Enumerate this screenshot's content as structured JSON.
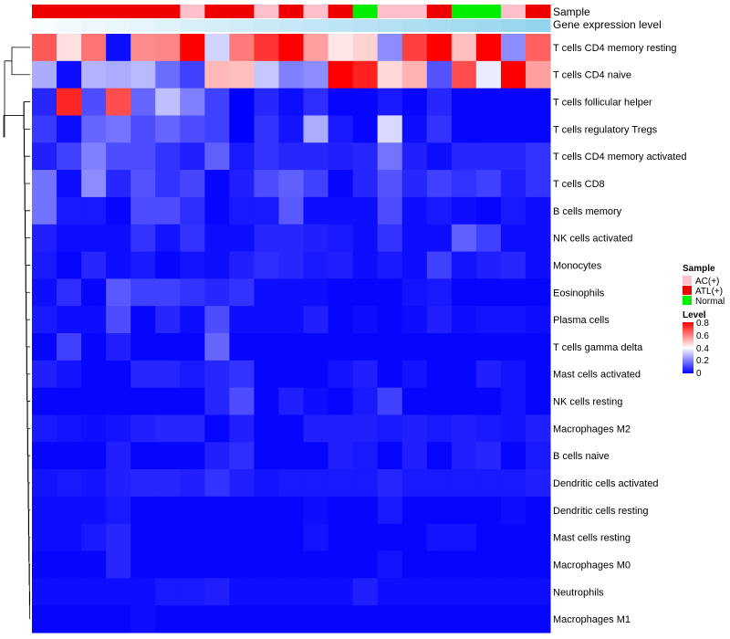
{
  "chart_data": {
    "type": "heatmap",
    "title": "",
    "annotation_tracks": [
      {
        "name": "Sample",
        "label": "Sample"
      },
      {
        "name": "Level",
        "label": "Gene expression level"
      }
    ],
    "rows": [
      "T cells CD4 memory resting",
      "T cells CD4 naive",
      "T cells follicular helper",
      "T cells regulatory  Tregs",
      "T cells CD4 memory activated",
      "T cells CD8",
      "B cells memory",
      "NK cells activated",
      "Monocytes",
      "Eosinophils",
      "Plasma cells",
      "T cells gamma delta",
      "Mast cells activated",
      "NK cells resting",
      "Macrophages M2",
      "B cells naive",
      "Dendritic cells activated",
      "Dendritic cells resting",
      "Mast cells resting",
      "Macrophages M0",
      "Neutrophils",
      "Macrophages M1"
    ],
    "sample_groups": [
      "ATL(+)",
      "ATL(+)",
      "ATL(+)",
      "ATL(+)",
      "ATL(+)",
      "ATL(+)",
      "AC(+)",
      "ATL(+)",
      "ATL(+)",
      "AC(+)",
      "ATL(+)",
      "AC(+)",
      "ATL(+)",
      "Normal",
      "AC(+)",
      "AC(+)",
      "ATL(+)",
      "Normal",
      "Normal",
      "AC(+)",
      "ATL(+)"
    ],
    "expression_level": [
      0.05,
      0.1,
      0.14,
      0.18,
      0.22,
      0.27,
      0.31,
      0.35,
      0.39,
      0.43,
      0.47,
      0.51,
      0.55,
      0.59,
      0.63,
      0.67,
      0.71,
      0.76,
      0.8,
      0.84,
      0.88
    ],
    "values": [
      [
        0.66,
        0.45,
        0.62,
        0.02,
        0.58,
        0.59,
        0.8,
        0.33,
        0.61,
        0.72,
        0.8,
        0.55,
        0.44,
        0.47,
        0.22,
        0.7,
        0.8,
        0.5,
        0.82,
        0.22,
        0.65
      ],
      [
        0.27,
        0.02,
        0.28,
        0.27,
        0.29,
        0.17,
        0.1,
        0.51,
        0.5,
        0.31,
        0.2,
        0.22,
        0.8,
        0.75,
        0.46,
        0.52,
        0.13,
        0.68,
        0.37,
        0.82,
        0.55
      ],
      [
        0.06,
        0.74,
        0.12,
        0.68,
        0.16,
        0.3,
        0.2,
        0.1,
        0.0,
        0.06,
        0.02,
        0.07,
        0.01,
        0.01,
        0.04,
        0.01,
        0.06,
        0.01,
        0.01,
        0.01,
        0.01
      ],
      [
        0.09,
        0.02,
        0.16,
        0.18,
        0.12,
        0.16,
        0.12,
        0.1,
        0.0,
        0.08,
        0.03,
        0.27,
        0.04,
        0.01,
        0.34,
        0.02,
        0.08,
        0.01,
        0.01,
        0.01,
        0.01
      ],
      [
        0.05,
        0.1,
        0.2,
        0.12,
        0.12,
        0.08,
        0.05,
        0.15,
        0.04,
        0.08,
        0.06,
        0.06,
        0.05,
        0.06,
        0.18,
        0.05,
        0.02,
        0.06,
        0.06,
        0.06,
        0.08
      ],
      [
        0.18,
        0.02,
        0.22,
        0.06,
        0.13,
        0.08,
        0.11,
        0.01,
        0.05,
        0.12,
        0.15,
        0.1,
        0.01,
        0.06,
        0.13,
        0.06,
        0.1,
        0.08,
        0.1,
        0.05,
        0.08
      ],
      [
        0.18,
        0.04,
        0.04,
        0.01,
        0.12,
        0.12,
        0.07,
        0.01,
        0.04,
        0.04,
        0.14,
        0.02,
        0.02,
        0.02,
        0.12,
        0.02,
        0.04,
        0.02,
        0.01,
        0.04,
        0.02
      ],
      [
        0.05,
        0.02,
        0.02,
        0.02,
        0.08,
        0.03,
        0.08,
        0.02,
        0.02,
        0.06,
        0.06,
        0.05,
        0.04,
        0.02,
        0.08,
        0.02,
        0.02,
        0.15,
        0.1,
        0.02,
        0.02
      ],
      [
        0.04,
        0.01,
        0.06,
        0.02,
        0.04,
        0.01,
        0.03,
        0.02,
        0.05,
        0.07,
        0.06,
        0.04,
        0.05,
        0.02,
        0.04,
        0.02,
        0.1,
        0.03,
        0.05,
        0.06,
        0.02
      ],
      [
        0.02,
        0.07,
        0.01,
        0.14,
        0.1,
        0.1,
        0.08,
        0.06,
        0.08,
        0.02,
        0.02,
        0.02,
        0.01,
        0.01,
        0.01,
        0.03,
        0.04,
        0.01,
        0.01,
        0.01,
        0.01
      ],
      [
        0.04,
        0.02,
        0.02,
        0.12,
        0.01,
        0.06,
        0.02,
        0.12,
        0.02,
        0.02,
        0.02,
        0.05,
        0.01,
        0.02,
        0.01,
        0.02,
        0.05,
        0.02,
        0.03,
        0.03,
        0.02
      ],
      [
        0.01,
        0.1,
        0.01,
        0.05,
        0.01,
        0.01,
        0.01,
        0.16,
        0.01,
        0.01,
        0.01,
        0.01,
        0.01,
        0.01,
        0.01,
        0.01,
        0.01,
        0.01,
        0.01,
        0.01,
        0.01
      ],
      [
        0.05,
        0.03,
        0.01,
        0.01,
        0.06,
        0.06,
        0.04,
        0.06,
        0.08,
        0.01,
        0.01,
        0.01,
        0.03,
        0.05,
        0.01,
        0.03,
        0.01,
        0.01,
        0.05,
        0.03,
        0.01
      ],
      [
        0.01,
        0.01,
        0.01,
        0.01,
        0.01,
        0.01,
        0.01,
        0.06,
        0.12,
        0.01,
        0.05,
        0.02,
        0.01,
        0.04,
        0.1,
        0.01,
        0.01,
        0.01,
        0.01,
        0.03,
        0.01
      ],
      [
        0.04,
        0.03,
        0.02,
        0.03,
        0.05,
        0.06,
        0.06,
        0.01,
        0.05,
        0.01,
        0.01,
        0.05,
        0.05,
        0.05,
        0.04,
        0.05,
        0.04,
        0.05,
        0.04,
        0.03,
        0.05
      ],
      [
        0.01,
        0.01,
        0.01,
        0.05,
        0.01,
        0.01,
        0.01,
        0.05,
        0.07,
        0.01,
        0.01,
        0.01,
        0.05,
        0.04,
        0.01,
        0.05,
        0.01,
        0.05,
        0.06,
        0.01,
        0.04
      ],
      [
        0.03,
        0.04,
        0.03,
        0.05,
        0.06,
        0.06,
        0.05,
        0.08,
        0.05,
        0.03,
        0.04,
        0.04,
        0.04,
        0.04,
        0.06,
        0.04,
        0.04,
        0.04,
        0.04,
        0.04,
        0.05
      ],
      [
        0.02,
        0.02,
        0.02,
        0.04,
        0.01,
        0.01,
        0.01,
        0.01,
        0.01,
        0.01,
        0.01,
        0.02,
        0.01,
        0.01,
        0.04,
        0.01,
        0.01,
        0.01,
        0.01,
        0.02,
        0.01
      ],
      [
        0.02,
        0.02,
        0.04,
        0.06,
        0.01,
        0.01,
        0.01,
        0.01,
        0.01,
        0.01,
        0.01,
        0.03,
        0.01,
        0.01,
        0.01,
        0.01,
        0.03,
        0.03,
        0.01,
        0.01,
        0.01
      ],
      [
        0.01,
        0.01,
        0.01,
        0.06,
        0.01,
        0.01,
        0.01,
        0.01,
        0.01,
        0.01,
        0.01,
        0.01,
        0.01,
        0.01,
        0.03,
        0.01,
        0.01,
        0.01,
        0.01,
        0.01,
        0.01
      ],
      [
        0.02,
        0.02,
        0.02,
        0.02,
        0.02,
        0.04,
        0.04,
        0.05,
        0.02,
        0.02,
        0.02,
        0.02,
        0.02,
        0.05,
        0.02,
        0.02,
        0.02,
        0.02,
        0.02,
        0.02,
        0.02
      ],
      [
        0.01,
        0.01,
        0.01,
        0.01,
        0.02,
        0.01,
        0.01,
        0.01,
        0.01,
        0.01,
        0.01,
        0.01,
        0.01,
        0.01,
        0.01,
        0.01,
        0.01,
        0.01,
        0.01,
        0.01,
        0.01
      ]
    ],
    "legend": {
      "sample": {
        "title": "Sample",
        "items": [
          {
            "label": "AC(+)",
            "color": "#ffc0cb"
          },
          {
            "label": "ATL(+)",
            "color": "#ee0000"
          },
          {
            "label": "Normal",
            "color": "#00ee00"
          }
        ]
      },
      "level": {
        "title": "Level",
        "range": [
          0,
          0.8
        ],
        "ticks": [
          "0.8",
          "0.6",
          "0.4",
          "0.2",
          "0"
        ]
      }
    },
    "color_scale": {
      "low": "#0000ff",
      "mid": "#ffffff",
      "high": "#ff0000",
      "domain": [
        0,
        0.4,
        0.8
      ]
    },
    "level_scale": {
      "low": "#ffffff",
      "high": "#87ceeb"
    }
  }
}
